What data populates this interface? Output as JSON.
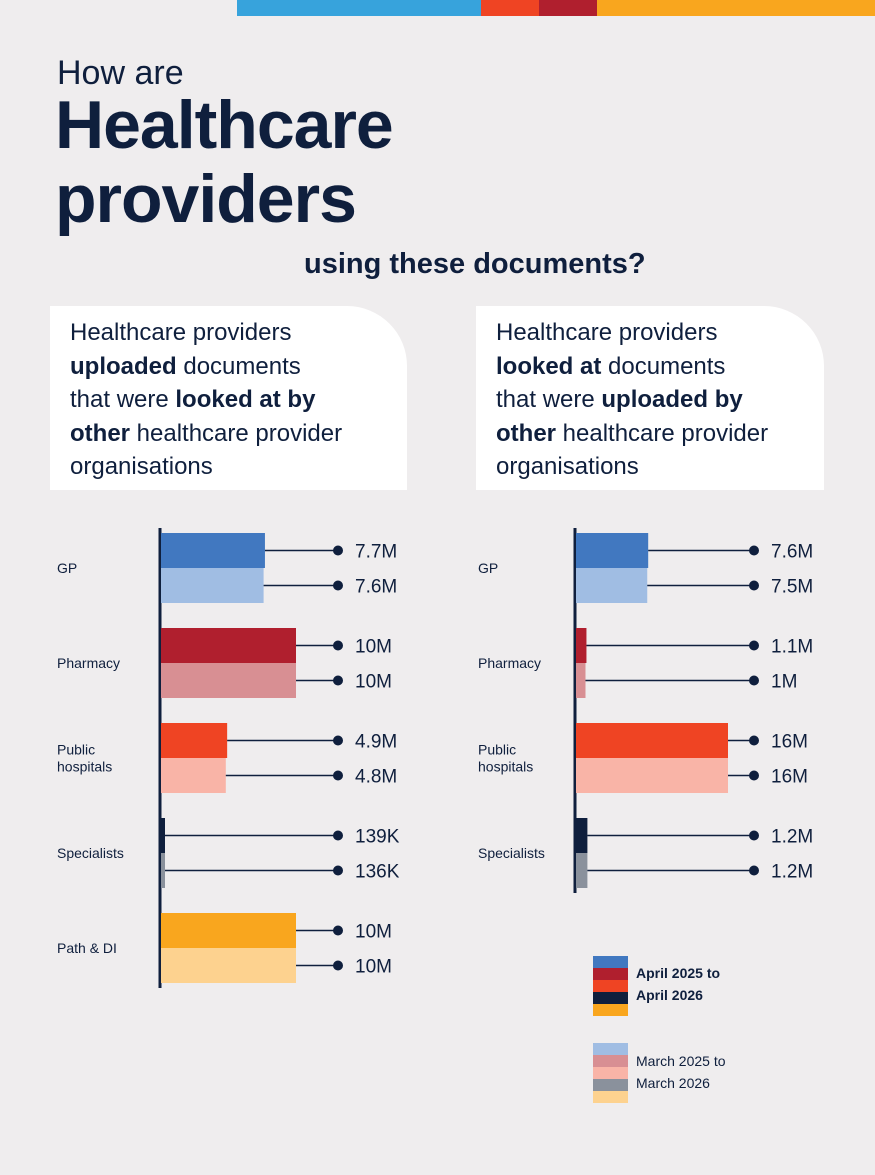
{
  "title": {
    "line1": "How are",
    "line2": "Healthcare",
    "line3": "providers",
    "line4": "using these documents?"
  },
  "cards": {
    "left": [
      {
        "text": "Healthcare providers",
        "bold": false
      },
      {
        "text": "uploaded",
        "bold": true
      },
      {
        "text": " documents",
        "bold": false
      },
      {
        "text": "that were ",
        "bold": false
      },
      {
        "text": "looked at by",
        "bold": true
      },
      {
        "text": "other",
        "bold": true
      },
      {
        "text": " healthcare provider",
        "bold": false
      },
      {
        "text": "organisations",
        "bold": false
      }
    ],
    "right": [
      {
        "text": "Healthcare providers",
        "bold": false
      },
      {
        "text": "looked at",
        "bold": true
      },
      {
        "text": " documents",
        "bold": false
      },
      {
        "text": "that were ",
        "bold": false
      },
      {
        "text": "uploaded by",
        "bold": true
      },
      {
        "text": "other",
        "bold": true
      },
      {
        "text": " healthcare provider",
        "bold": false
      },
      {
        "text": "organisations",
        "bold": false
      }
    ]
  },
  "legend": {
    "current": [
      "April 2025 to",
      "April 2026"
    ],
    "previous": [
      "March 2025 to",
      "March 2026"
    ]
  },
  "colors": {
    "topbar": [
      "#37a3dc",
      "#ef4423",
      "#b01f2e",
      "#f9a61e"
    ],
    "gp": [
      "#4178c0",
      "#a0bde3"
    ],
    "pharmacy": [
      "#b01f2e",
      "#d88f93"
    ],
    "public_hospitals": [
      "#ef4423",
      "#f9b4a7"
    ],
    "specialists": [
      "#0f1f3d",
      "#8a919c"
    ],
    "path_di": [
      "#f9a61e",
      "#fdd28f"
    ],
    "text": "#0f1f3d"
  },
  "chart_data": [
    {
      "type": "bar",
      "orientation": "horizontal",
      "title": "Healthcare providers uploaded documents that were looked at by other healthcare provider organisations",
      "categories": [
        "GP",
        "Pharmacy",
        "Public hospitals",
        "Specialists",
        "Path & DI"
      ],
      "category_lines": [
        [
          "GP"
        ],
        [
          "Pharmacy"
        ],
        [
          "Public",
          "hospitals"
        ],
        [
          "Specialists"
        ],
        [
          "Path & DI"
        ]
      ],
      "series": [
        {
          "name": "April 2025 to April 2026",
          "values": [
            7.7,
            10,
            4.9,
            0.139,
            10
          ],
          "labels": [
            "7.7M",
            "10M",
            "4.9M",
            "139K",
            "10M"
          ]
        },
        {
          "name": "March 2025 to March 2026",
          "values": [
            7.6,
            10,
            4.8,
            0.136,
            10
          ],
          "labels": [
            "7.6M",
            "10M",
            "4.8M",
            "136K",
            "10M"
          ]
        }
      ],
      "unit": "millions",
      "grid": false
    },
    {
      "type": "bar",
      "orientation": "horizontal",
      "title": "Healthcare providers looked at documents that were uploaded by other healthcare provider organisations",
      "categories": [
        "GP",
        "Pharmacy",
        "Public hospitals",
        "Specialists"
      ],
      "category_lines": [
        [
          "GP"
        ],
        [
          "Pharmacy"
        ],
        [
          "Public",
          "hospitals"
        ],
        [
          "Specialists"
        ]
      ],
      "series": [
        {
          "name": "April 2025 to April 2026",
          "values": [
            7.6,
            1.1,
            16,
            1.2
          ],
          "labels": [
            "7.6M",
            "1.1M",
            "16M",
            "1.2M"
          ]
        },
        {
          "name": "March 2025 to March 2026",
          "values": [
            7.5,
            1.0,
            16,
            1.2
          ],
          "labels": [
            "7.5M",
            "1M",
            "16M",
            "1.2M"
          ]
        }
      ],
      "unit": "millions",
      "grid": false
    }
  ]
}
